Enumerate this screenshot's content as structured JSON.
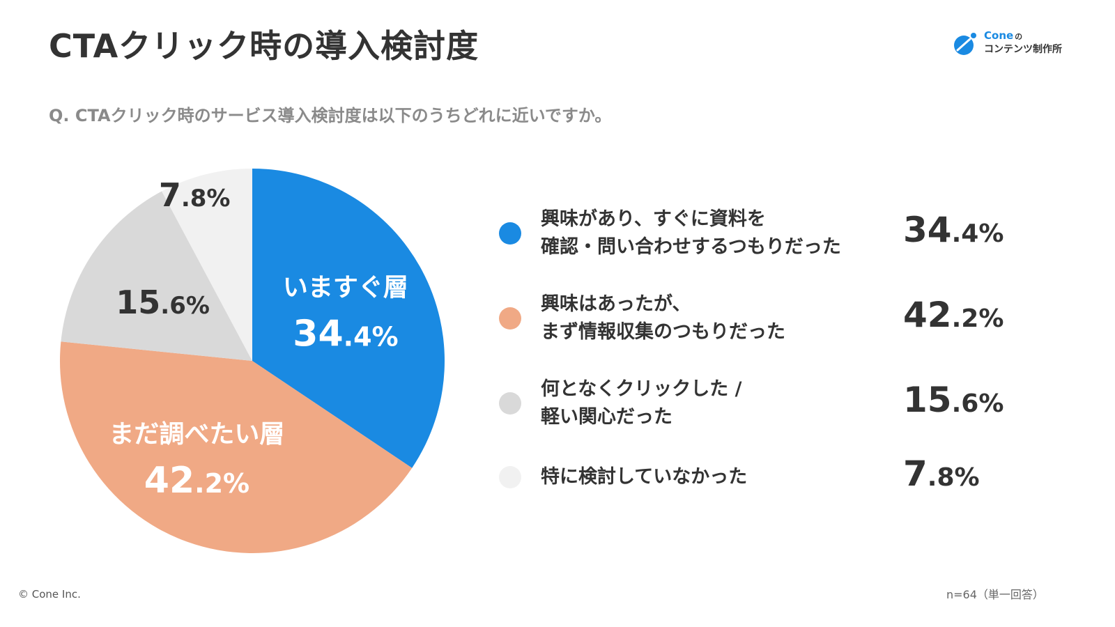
{
  "page": {
    "title": "CTAクリック時の導入検討度",
    "question": "Q. CTAクリック時のサービス導入検討度は以下のうちどれに近いですか。",
    "copyright": "© Cone Inc.",
    "sample_note": "n=64（単一回答）"
  },
  "logo": {
    "brand": "Cone",
    "particle": "の",
    "subtitle": "コンテンツ制作所"
  },
  "chart_data": {
    "type": "pie",
    "start_angle_deg": 0,
    "direction": "clockwise",
    "slices": [
      {
        "legend_lines": [
          "興味があり、すぐに資料を",
          "確認・問い合わせするつもりだった"
        ],
        "value": 34.4,
        "value_int": "34",
        "value_dec": ".4%",
        "on_pie_label": "いますぐ層",
        "color": "#1a8ae2",
        "label_color": "#ffffff"
      },
      {
        "legend_lines": [
          "興味はあったが、",
          "まず情報収集のつもりだった"
        ],
        "value": 42.2,
        "value_int": "42",
        "value_dec": ".2%",
        "on_pie_label": "まだ調べたい層",
        "color": "#f0a985",
        "label_color": "#ffffff"
      },
      {
        "legend_lines": [
          "何となくクリックした /",
          "軽い関心だった"
        ],
        "value": 15.6,
        "value_int": "15",
        "value_dec": ".6%",
        "on_pie_label": "",
        "color": "#d9d9d9",
        "label_color": "#333333"
      },
      {
        "legend_lines": [
          "特に検討していなかった"
        ],
        "value": 7.8,
        "value_int": "7",
        "value_dec": ".8%",
        "on_pie_label": "",
        "color": "#f1f1f1",
        "label_color": "#333333"
      }
    ]
  }
}
